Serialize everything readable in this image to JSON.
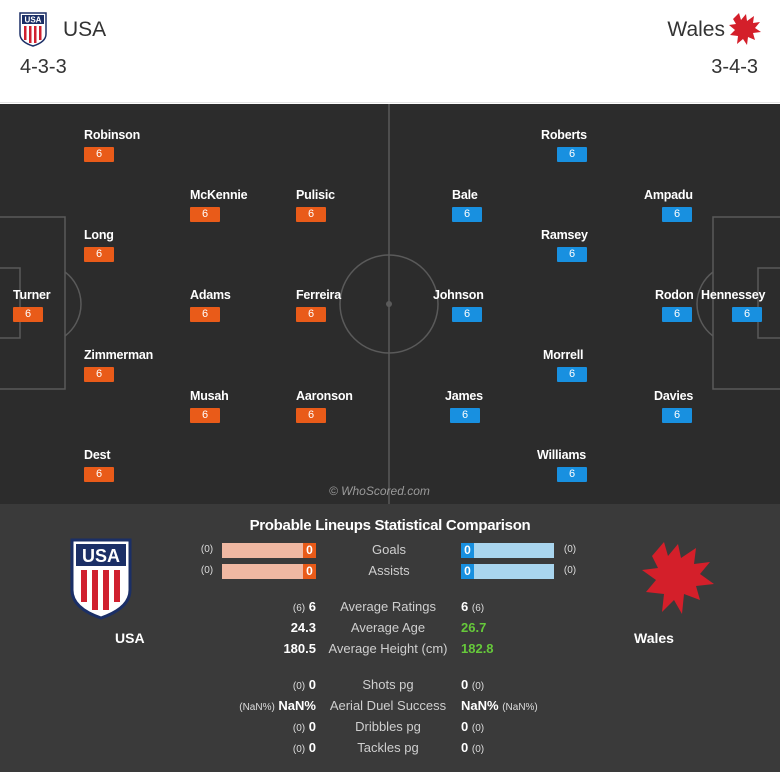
{
  "header": {
    "home": {
      "name": "USA",
      "formation": "4-3-3",
      "crest": "usa-crest-icon"
    },
    "away": {
      "name": "Wales",
      "formation": "3-4-3",
      "crest": "wales-dragon-icon"
    }
  },
  "pitch": {
    "home_players": [
      {
        "name": "Robinson",
        "rating": "6"
      },
      {
        "name": "McKennie",
        "rating": "6"
      },
      {
        "name": "Pulisic",
        "rating": "6"
      },
      {
        "name": "Long",
        "rating": "6"
      },
      {
        "name": "Turner",
        "rating": "6"
      },
      {
        "name": "Adams",
        "rating": "6"
      },
      {
        "name": "Ferreira",
        "rating": "6"
      },
      {
        "name": "Zimmerman",
        "rating": "6"
      },
      {
        "name": "Musah",
        "rating": "6"
      },
      {
        "name": "Aaronson",
        "rating": "6"
      },
      {
        "name": "Dest",
        "rating": "6"
      }
    ],
    "away_players": [
      {
        "name": "Roberts",
        "rating": "6"
      },
      {
        "name": "Bale",
        "rating": "6"
      },
      {
        "name": "Ampadu",
        "rating": "6"
      },
      {
        "name": "Ramsey",
        "rating": "6"
      },
      {
        "name": "Johnson",
        "rating": "6"
      },
      {
        "name": "Rodon",
        "rating": "6"
      },
      {
        "name": "Hennessey",
        "rating": "6"
      },
      {
        "name": "Morrell",
        "rating": "6"
      },
      {
        "name": "James",
        "rating": "6"
      },
      {
        "name": "Davies",
        "rating": "6"
      },
      {
        "name": "Williams",
        "rating": "6"
      }
    ],
    "watermark": "© WhoScored.com"
  },
  "comparison": {
    "title": "Probable Lineups Statistical Comparison",
    "home_team": "USA",
    "away_team": "Wales",
    "bars": [
      {
        "label": "Goals",
        "home_paren": "(0)",
        "home_value": "0",
        "away_value": "0",
        "away_paren": "(0)"
      },
      {
        "label": "Assists",
        "home_paren": "(0)",
        "home_value": "0",
        "away_value": "0",
        "away_paren": "(0)"
      }
    ],
    "stats": [
      {
        "label": "Average Ratings",
        "home_small": "(6)",
        "home_value": "6",
        "away_value": "6",
        "away_small": "(6)"
      },
      {
        "label": "Average Age",
        "home_small": "",
        "home_value": "24.3",
        "away_value": "26.7",
        "away_small": ""
      },
      {
        "label": "Average Height (cm)",
        "home_small": "",
        "home_value": "180.5",
        "away_value": "182.8",
        "away_small": ""
      },
      {
        "label": "Shots pg",
        "home_small": "(0)",
        "home_value": "0",
        "away_value": "0",
        "away_small": "(0)"
      },
      {
        "label": "Aerial Duel Success",
        "home_small": "(NaN%)",
        "home_value": "NaN%",
        "away_value": "NaN%",
        "away_small": "(NaN%)"
      },
      {
        "label": "Dribbles pg",
        "home_small": "(0)",
        "home_value": "0",
        "away_value": "0",
        "away_small": "(0)"
      },
      {
        "label": "Tackles pg",
        "home_small": "(0)",
        "home_value": "0",
        "away_value": "0",
        "away_small": "(0)"
      }
    ],
    "colors": {
      "home": "#e95b19",
      "away": "#1890e0",
      "better": "#66c93a"
    }
  }
}
